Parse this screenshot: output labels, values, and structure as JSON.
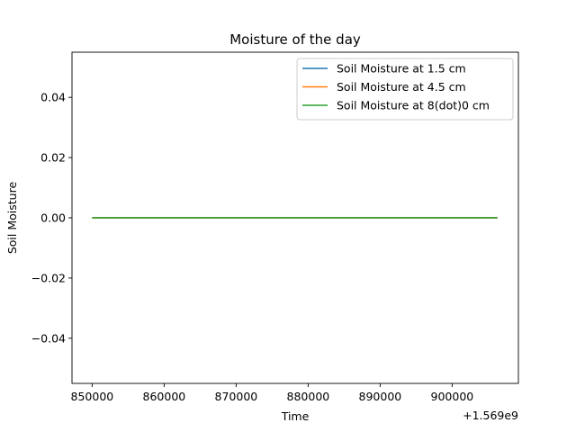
{
  "chart_data": {
    "type": "line",
    "title": "Moisture of the day",
    "xlabel": "Time",
    "ylabel": "Soil Moisture",
    "x_offset_label": "+1.569e9",
    "xlim": [
      847200,
      909200
    ],
    "ylim": [
      -0.055,
      0.055
    ],
    "x_ticks": [
      850000,
      860000,
      870000,
      880000,
      890000,
      900000
    ],
    "x_tick_labels": [
      "850000",
      "860000",
      "870000",
      "880000",
      "890000",
      "900000"
    ],
    "y_ticks": [
      -0.04,
      -0.02,
      0.0,
      0.02,
      0.04
    ],
    "y_tick_labels": [
      "−0.04",
      "−0.02",
      "0.00",
      "0.02",
      "0.04"
    ],
    "grid": false,
    "legend_position": "upper right",
    "series": [
      {
        "name": "Soil Moisture at 1.5 cm",
        "color": "#1f77b4",
        "x": [
          850000,
          906300
        ],
        "y": [
          0,
          0
        ]
      },
      {
        "name": "Soil Moisture at 4.5 cm",
        "color": "#ff7f0e",
        "x": [
          850000,
          906300
        ],
        "y": [
          0,
          0
        ]
      },
      {
        "name": "Soil Moisture at 8(dot)0 cm",
        "color": "#2ca02c",
        "x": [
          850000,
          906300
        ],
        "y": [
          0,
          0
        ]
      }
    ]
  }
}
